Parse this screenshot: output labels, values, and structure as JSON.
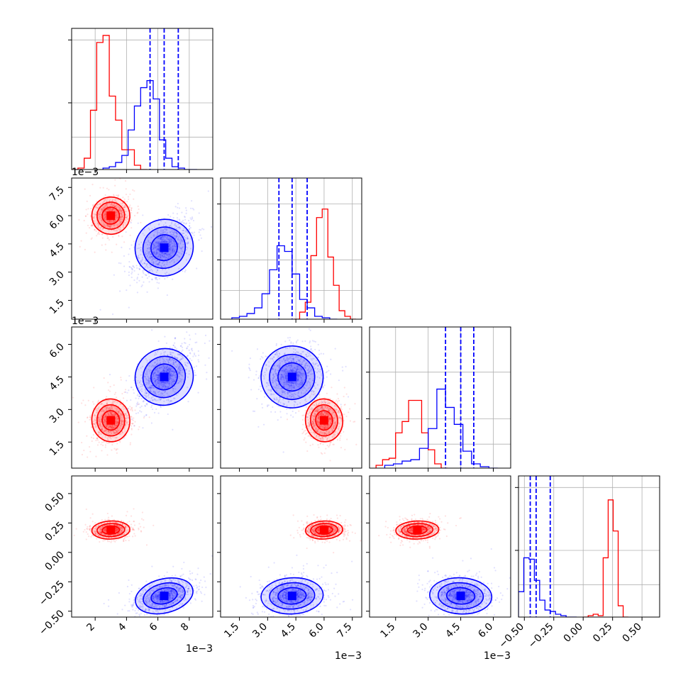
{
  "chart_data": {
    "type": "corner",
    "n_params": 4,
    "colors": {
      "series_a": "#ff0000",
      "series_b": "#0000ff"
    },
    "grid": true,
    "params": [
      {
        "range": [
          0.0005,
          0.0095
        ],
        "ticks": [
          2,
          4,
          6,
          8
        ],
        "tick_labels": [
          "2",
          "4",
          "6",
          "8"
        ],
        "offset_label": "1e−3"
      },
      {
        "range": [
          0.0005,
          0.008
        ],
        "ticks": [
          1.5,
          3.0,
          4.5,
          6.0,
          7.5
        ],
        "tick_labels": [
          "1.5",
          "3.0",
          "4.5",
          "6.0",
          "7.5"
        ],
        "offset_label": "1e−3"
      },
      {
        "range": [
          0.0003,
          0.0068
        ],
        "ticks": [
          1.5,
          3.0,
          4.5,
          6.0
        ],
        "tick_labels": [
          "1.5",
          "3.0",
          "4.5",
          "6.0"
        ],
        "offset_label": "1e−3"
      },
      {
        "range": [
          -0.55,
          0.65
        ],
        "ticks": [
          -0.5,
          -0.25,
          0.0,
          0.25,
          0.5
        ],
        "tick_labels": [
          "−0.50",
          "−0.25",
          "0.00",
          "0.25",
          "0.50"
        ],
        "offset_label": ""
      }
    ],
    "series": [
      {
        "color": "#ff0000",
        "mean": [
          0.003,
          0.006,
          0.0025,
          0.19
        ],
        "sd": [
          0.00055,
          0.00045,
          0.00045,
          0.035
        ],
        "marginals": [
          {
            "edges_start": 0.0005,
            "bin_width": 0.0004,
            "counts": [
              0.0,
              0.01,
              0.08,
              0.42,
              0.9,
              0.95,
              0.52,
              0.35,
              0.14,
              0.14,
              0.03,
              0.0
            ]
          },
          {
            "edges_start": 0.0044,
            "bin_width": 0.0003,
            "counts": [
              0.0,
              0.05,
              0.12,
              0.45,
              0.72,
              0.78,
              0.44,
              0.24,
              0.06,
              0.02,
              0.0
            ]
          },
          {
            "edges_start": 0.0006,
            "bin_width": 0.0003,
            "counts": [
              0.02,
              0.06,
              0.07,
              0.25,
              0.33,
              0.48,
              0.48,
              0.25,
              0.13,
              0.03,
              0.0
            ]
          },
          {
            "edges_start": 0.0,
            "bin_width": 0.0425,
            "counts": [
              0.0,
              0.01,
              0.02,
              0.01,
              0.42,
              0.83,
              0.61,
              0.08,
              0.0
            ]
          }
        ]
      },
      {
        "color": "#0000ff",
        "mean": [
          0.0064,
          0.0043,
          0.0045,
          -0.37
        ],
        "sd": [
          0.00085,
          0.00075,
          0.00065,
          0.07
        ],
        "quantiles": [
          [
            0.0055,
            0.0064,
            0.0073
          ],
          [
            0.0036,
            0.0043,
            0.0051
          ],
          [
            0.0038,
            0.0045,
            0.0051
          ],
          [
            -0.45,
            -0.4,
            -0.28
          ]
        ],
        "marginals": [
          {
            "edges_start": 0.0025,
            "bin_width": 0.0004,
            "counts": [
              0.01,
              0.02,
              0.05,
              0.1,
              0.28,
              0.45,
              0.58,
              0.63,
              0.5,
              0.21,
              0.08,
              0.02,
              0.01,
              0.0,
              0.0
            ]
          },
          {
            "edges_start": 0.0011,
            "bin_width": 0.0004,
            "counts": [
              0.01,
              0.02,
              0.04,
              0.08,
              0.18,
              0.35,
              0.52,
              0.48,
              0.32,
              0.14,
              0.08,
              0.02,
              0.01,
              0.0
            ]
          },
          {
            "edges_start": 0.001,
            "bin_width": 0.0004,
            "counts": [
              0.02,
              0.03,
              0.05,
              0.06,
              0.14,
              0.28,
              0.56,
              0.43,
              0.31,
              0.12,
              0.03,
              0.01,
              0.0
            ]
          },
          {
            "edges_start": -0.55,
            "bin_width": 0.045,
            "counts": [
              0.18,
              0.42,
              0.41,
              0.26,
              0.12,
              0.05,
              0.04,
              0.02,
              0.01,
              0.0,
              0.0
            ]
          }
        ]
      }
    ]
  }
}
